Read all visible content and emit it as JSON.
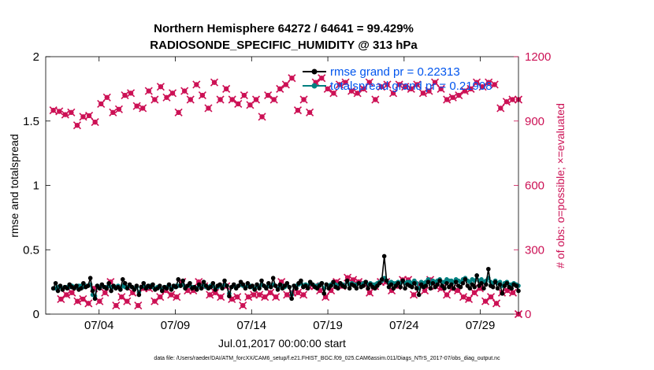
{
  "chart_data": {
    "type": "line",
    "title": "Northern Hemisphere 64272 / 64641 = 99.429%",
    "subtitle": "RADIOSONDE_SPECIFIC_HUMIDITY @ 313 hPa",
    "xlabel": "Jul.01,2017 00:00:00 start",
    "ylabel_left": "rmse and totalspread",
    "ylabel_right": "# of obs: o=possible; ×=evaluated",
    "x_range_days": [
      0.5,
      31.5
    ],
    "y_left_range": [
      0,
      2
    ],
    "y_right_range": [
      0,
      1200
    ],
    "x_ticks": [
      {
        "day": 4,
        "label": "07/04"
      },
      {
        "day": 9,
        "label": "07/09"
      },
      {
        "day": 14,
        "label": "07/14"
      },
      {
        "day": 19,
        "label": "07/19"
      },
      {
        "day": 24,
        "label": "07/24"
      },
      {
        "day": 29,
        "label": "07/29"
      }
    ],
    "y_left_ticks": [
      {
        "value": 0,
        "label": "0"
      },
      {
        "value": 0.5,
        "label": "0.5"
      },
      {
        "value": 1,
        "label": "1"
      },
      {
        "value": 1.5,
        "label": "1.5"
      },
      {
        "value": 2,
        "label": "2"
      }
    ],
    "y_right_ticks": [
      {
        "value": 0,
        "label": "0"
      },
      {
        "value": 300,
        "label": "300"
      },
      {
        "value": 600,
        "label": "600"
      },
      {
        "value": 900,
        "label": "900"
      },
      {
        "value": 1200,
        "label": "1200"
      }
    ],
    "legend": [
      {
        "name": "rmse grand pr = 0.22313",
        "color": "#000000"
      },
      {
        "name": "totalspread grand pr = 0.21908",
        "color": "#008080"
      }
    ],
    "colors": {
      "rmse": "#000000",
      "spread": "#008080",
      "obs": "#cc1155",
      "legend_text": "#0055ee"
    },
    "series": {
      "rmse": [
        0.2,
        0.24,
        0.18,
        0.22,
        0.19,
        0.21,
        0.2,
        0.23,
        0.21,
        0.2,
        0.22,
        0.19,
        0.2,
        0.24,
        0.21,
        0.22,
        0.28,
        0.18,
        0.12,
        0.22,
        0.2,
        0.23,
        0.21,
        0.2,
        0.24,
        0.18,
        0.22,
        0.2,
        0.21,
        0.19,
        0.27,
        0.24,
        0.2,
        0.23,
        0.21,
        0.19,
        0.22,
        0.15,
        0.21,
        0.24,
        0.2,
        0.22,
        0.21,
        0.23,
        0.19,
        0.2,
        0.22,
        0.18,
        0.21,
        0.2,
        0.23,
        0.19,
        0.22,
        0.21,
        0.27,
        0.22,
        0.26,
        0.2,
        0.22,
        0.24,
        0.2,
        0.21,
        0.19,
        0.23,
        0.2,
        0.25,
        0.22,
        0.2,
        0.21,
        0.24,
        0.19,
        0.22,
        0.23,
        0.2,
        0.26,
        0.22,
        0.14,
        0.21,
        0.23,
        0.2,
        0.22,
        0.25,
        0.23,
        0.2,
        0.24,
        0.21,
        0.22,
        0.19,
        0.23,
        0.2,
        0.26,
        0.22,
        0.2,
        0.24,
        0.21,
        0.28,
        0.22,
        0.19,
        0.23,
        0.2,
        0.22,
        0.24,
        0.21,
        0.12,
        0.22,
        0.2,
        0.24,
        0.26,
        0.21,
        0.22,
        0.2,
        0.25,
        0.23,
        0.21,
        0.2,
        0.22,
        0.24,
        0.16,
        0.23,
        0.2,
        0.22,
        0.25,
        0.21,
        0.2,
        0.24,
        0.22,
        0.21,
        0.26,
        0.2,
        0.23,
        0.22,
        0.2,
        0.24,
        0.21,
        0.22,
        0.25,
        0.2,
        0.23,
        0.21,
        0.2,
        0.22,
        0.24,
        0.27,
        0.45,
        0.26,
        0.21,
        0.23,
        0.2,
        0.22,
        0.24,
        0.21,
        0.26,
        0.2,
        0.23,
        0.22,
        0.21,
        0.24,
        0.2,
        0.15,
        0.23,
        0.21,
        0.22,
        0.25,
        0.2,
        0.24,
        0.21,
        0.23,
        0.26,
        0.22,
        0.2,
        0.24,
        0.21,
        0.23,
        0.2,
        0.25,
        0.22,
        0.21,
        0.24,
        0.27,
        0.22,
        0.2,
        0.23,
        0.21,
        0.3,
        0.22,
        0.24,
        0.2,
        0.23,
        0.35,
        0.22,
        0.21,
        0.25,
        0.2,
        0.23,
        0.16,
        0.22,
        0.24,
        0.21,
        0.2,
        0.23,
        0.22,
        0.18
      ],
      "spread": [
        0.2,
        0.2,
        0.21,
        0.21,
        0.2,
        0.21,
        0.21,
        0.21,
        0.22,
        0.21,
        0.21,
        0.22,
        0.22,
        0.21,
        0.22,
        0.22,
        0.23,
        0.15,
        0.14,
        0.22,
        0.21,
        0.22,
        0.21,
        0.21,
        0.22,
        0.21,
        0.21,
        0.21,
        0.22,
        0.2,
        0.22,
        0.21,
        0.21,
        0.22,
        0.21,
        0.2,
        0.21,
        0.17,
        0.21,
        0.22,
        0.21,
        0.21,
        0.22,
        0.21,
        0.2,
        0.21,
        0.21,
        0.19,
        0.21,
        0.21,
        0.22,
        0.2,
        0.21,
        0.22,
        0.22,
        0.22,
        0.23,
        0.21,
        0.22,
        0.22,
        0.21,
        0.21,
        0.2,
        0.22,
        0.21,
        0.23,
        0.21,
        0.21,
        0.22,
        0.22,
        0.2,
        0.21,
        0.22,
        0.21,
        0.23,
        0.22,
        0.16,
        0.21,
        0.22,
        0.21,
        0.22,
        0.23,
        0.22,
        0.21,
        0.22,
        0.22,
        0.21,
        0.2,
        0.22,
        0.21,
        0.23,
        0.22,
        0.21,
        0.22,
        0.22,
        0.23,
        0.22,
        0.2,
        0.22,
        0.22,
        0.21,
        0.23,
        0.21,
        0.15,
        0.22,
        0.22,
        0.23,
        0.24,
        0.22,
        0.23,
        0.22,
        0.24,
        0.23,
        0.22,
        0.22,
        0.23,
        0.24,
        0.2,
        0.23,
        0.22,
        0.23,
        0.24,
        0.23,
        0.22,
        0.24,
        0.23,
        0.22,
        0.25,
        0.23,
        0.24,
        0.23,
        0.23,
        0.24,
        0.23,
        0.24,
        0.25,
        0.23,
        0.24,
        0.23,
        0.23,
        0.24,
        0.25,
        0.26,
        0.28,
        0.26,
        0.24,
        0.25,
        0.24,
        0.24,
        0.25,
        0.24,
        0.26,
        0.24,
        0.25,
        0.25,
        0.24,
        0.26,
        0.24,
        0.2,
        0.25,
        0.24,
        0.25,
        0.27,
        0.24,
        0.26,
        0.25,
        0.26,
        0.27,
        0.25,
        0.25,
        0.27,
        0.26,
        0.26,
        0.25,
        0.27,
        0.26,
        0.25,
        0.27,
        0.28,
        0.26,
        0.25,
        0.27,
        0.26,
        0.3,
        0.26,
        0.27,
        0.25,
        0.26,
        0.28,
        0.25,
        0.24,
        0.26,
        0.24,
        0.25,
        0.22,
        0.24,
        0.25,
        0.23,
        0.23,
        0.24,
        0.23,
        0.22
      ],
      "obs_possible_12z": [
        950,
        945,
        930,
        940,
        880,
        920,
        925,
        895,
        980,
        1010,
        940,
        955,
        1020,
        1030,
        970,
        960,
        1040,
        1000,
        1060,
        1010,
        1030,
        940,
        1040,
        1000,
        1070,
        1020,
        960,
        1080,
        1000,
        1050,
        1000,
        980,
        1020,
        975,
        1000,
        920,
        1020,
        1000,
        1050,
        1070,
        1100,
        950,
        1000,
        940,
        1080,
        1100,
        1050,
        1030,
        1070,
        1080,
        1040,
        1030,
        1050,
        1080,
        1000,
        1060,
        1070,
        1030,
        1070,
        1060,
        1050,
        1070,
        1030,
        1040,
        1080,
        1050,
        1000,
        1010,
        1020,
        1040,
        1050,
        1080,
        1060,
        1080,
        1070,
        960,
        990,
        1000,
        1000
      ],
      "obs_possible_00z": [
        70,
        90,
        100,
        60,
        70,
        50,
        120,
        60,
        100,
        150,
        40,
        80,
        60,
        100,
        40,
        120,
        120,
        60,
        80,
        110,
        90,
        80,
        150,
        110,
        110,
        150,
        130,
        90,
        100,
        80,
        130,
        70,
        80,
        40,
        80,
        90,
        90,
        80,
        100,
        80,
        150,
        90,
        100,
        100,
        90,
        130,
        130,
        110,
        80,
        110,
        150,
        130,
        170,
        160,
        150,
        140,
        100,
        130,
        150,
        150,
        110,
        130,
        160,
        160,
        90,
        140,
        110,
        160,
        130,
        120,
        90,
        120,
        110,
        80,
        70,
        100,
        120,
        60,
        80,
        50,
        100,
        110,
        100,
        0
      ]
    }
  },
  "footnote": "data file: /Users/raeder/DAI/ATM_forcXX/CAM6_setup/f.e21.FHIST_BGC.f09_025.CAM6assim.011/Diags_NTrS_2017-07/obs_diag_output.nc"
}
